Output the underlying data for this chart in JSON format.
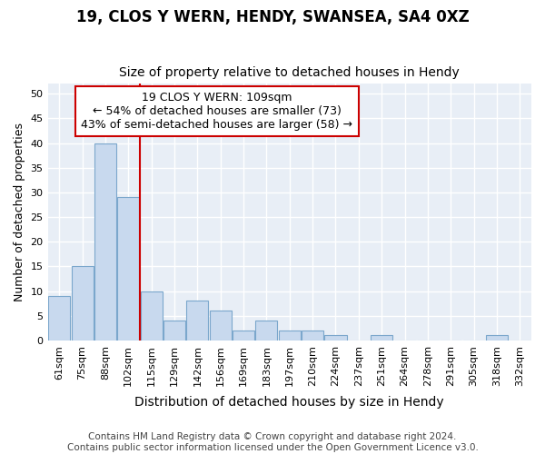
{
  "title1": "19, CLOS Y WERN, HENDY, SWANSEA, SA4 0XZ",
  "title2": "Size of property relative to detached houses in Hendy",
  "xlabel": "Distribution of detached houses by size in Hendy",
  "ylabel": "Number of detached properties",
  "categories": [
    "61sqm",
    "75sqm",
    "88sqm",
    "102sqm",
    "115sqm",
    "129sqm",
    "142sqm",
    "156sqm",
    "169sqm",
    "183sqm",
    "197sqm",
    "210sqm",
    "224sqm",
    "237sqm",
    "251sqm",
    "264sqm",
    "278sqm",
    "291sqm",
    "305sqm",
    "318sqm",
    "332sqm"
  ],
  "values": [
    9,
    15,
    40,
    29,
    10,
    4,
    8,
    6,
    2,
    4,
    2,
    2,
    1,
    0,
    1,
    0,
    0,
    0,
    0,
    1,
    0
  ],
  "bar_color": "#c8d9ee",
  "bar_edge_color": "#7ba7cc",
  "vline_x": 3.5,
  "annotation_text": "19 CLOS Y WERN: 109sqm\n← 54% of detached houses are smaller (73)\n43% of semi-detached houses are larger (58) →",
  "annotation_box_color": "#ffffff",
  "annotation_box_edge_color": "#cc0000",
  "vline_color": "#cc0000",
  "footer": "Contains HM Land Registry data © Crown copyright and database right 2024.\nContains public sector information licensed under the Open Government Licence v3.0.",
  "ylim": [
    0,
    52
  ],
  "yticks": [
    0,
    5,
    10,
    15,
    20,
    25,
    30,
    35,
    40,
    45,
    50
  ],
  "fig_bg_color": "#ffffff",
  "plot_bg_color": "#e8eef6",
  "grid_color": "#ffffff",
  "title1_fontsize": 12,
  "title2_fontsize": 10,
  "xlabel_fontsize": 10,
  "ylabel_fontsize": 9,
  "tick_fontsize": 8,
  "footer_fontsize": 7.5,
  "annotation_fontsize": 9
}
